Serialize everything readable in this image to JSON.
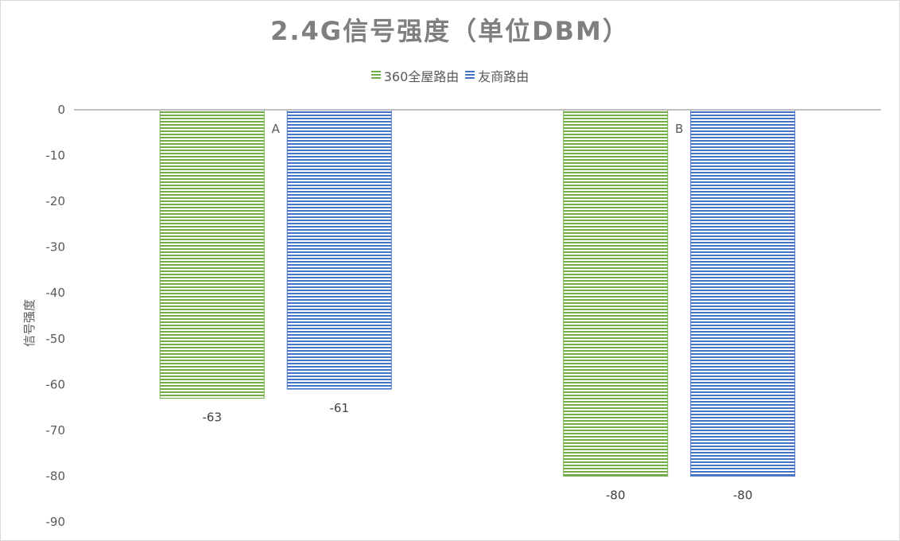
{
  "chart_data": {
    "type": "bar",
    "title": "2.4G信号强度（单位DBM）",
    "ylabel": "信号强度",
    "xlabel": "",
    "categories": [
      "A",
      "B"
    ],
    "series": [
      {
        "name": "360全屋路由",
        "values": [
          -63,
          -80
        ],
        "color": "#70ad47"
      },
      {
        "name": "友商路由",
        "values": [
          -61,
          -80
        ],
        "color": "#4472c4"
      }
    ],
    "ylim": [
      -90,
      0
    ],
    "yticks": [
      0,
      -10,
      -20,
      -30,
      -40,
      -50,
      -60,
      -70,
      -80,
      -90
    ],
    "legend_position": "top",
    "grid": false,
    "bar_pattern": "horizontal-stripes"
  }
}
